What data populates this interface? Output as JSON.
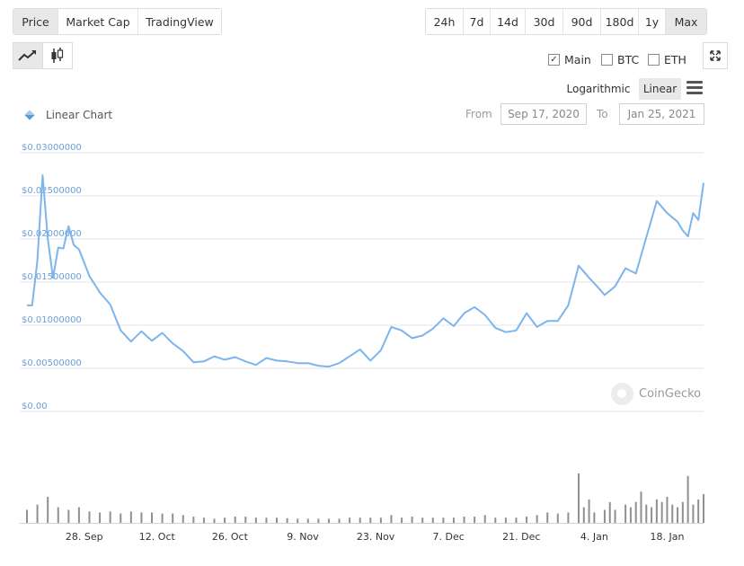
{
  "tabs": [
    {
      "label": "Price",
      "active": true
    },
    {
      "label": "Market Cap",
      "active": false
    },
    {
      "label": "TradingView",
      "active": false
    }
  ],
  "ranges": [
    {
      "label": "24h",
      "active": false
    },
    {
      "label": "7d",
      "active": false
    },
    {
      "label": "14d",
      "active": false
    },
    {
      "label": "30d",
      "active": false
    },
    {
      "label": "90d",
      "active": false
    },
    {
      "label": "180d",
      "active": false
    },
    {
      "label": "1y",
      "active": false
    },
    {
      "label": "Max",
      "active": true
    }
  ],
  "chart_style": {
    "line_icon": "line-chart-icon",
    "candle_icon": "candlestick-icon",
    "selected": "line"
  },
  "expand_icon": "expand-icon",
  "compare": {
    "main": {
      "label": "Main",
      "checked": true
    },
    "btc": {
      "label": "BTC",
      "checked": false
    },
    "eth": {
      "label": "ETH",
      "checked": false
    }
  },
  "scale": {
    "log_label": "Logarithmic",
    "linear_label": "Linear",
    "selected": "linear",
    "menu_icon": "menu-icon"
  },
  "date_range": {
    "from_label": "From",
    "from_value": "Sep 17, 2020",
    "to_label": "To",
    "to_value": "Jan 25, 2021"
  },
  "watermark": "CoinGecko",
  "colors": {
    "line": "#7cb5ec",
    "axis_labels": "#6b9fd4",
    "volume": "#909090",
    "grid": "#e6e6e6"
  },
  "chart_data": {
    "type": "line",
    "series": [
      {
        "name": "Linear Chart",
        "x": [
          "2020-09-17",
          "2020-09-18",
          "2020-09-19",
          "2020-09-20",
          "2020-09-21",
          "2020-09-22",
          "2020-09-23",
          "2020-09-24",
          "2020-09-25",
          "2020-09-26",
          "2020-09-27",
          "2020-09-29",
          "2020-10-01",
          "2020-10-03",
          "2020-10-05",
          "2020-10-07",
          "2020-10-09",
          "2020-10-11",
          "2020-10-13",
          "2020-10-15",
          "2020-10-17",
          "2020-10-19",
          "2020-10-21",
          "2020-10-23",
          "2020-10-25",
          "2020-10-27",
          "2020-10-29",
          "2020-10-31",
          "2020-11-02",
          "2020-11-04",
          "2020-11-06",
          "2020-11-08",
          "2020-11-10",
          "2020-11-12",
          "2020-11-14",
          "2020-11-16",
          "2020-11-18",
          "2020-11-20",
          "2020-11-22",
          "2020-11-24",
          "2020-11-26",
          "2020-11-28",
          "2020-11-30",
          "2020-12-02",
          "2020-12-04",
          "2020-12-06",
          "2020-12-08",
          "2020-12-10",
          "2020-12-12",
          "2020-12-14",
          "2020-12-16",
          "2020-12-18",
          "2020-12-20",
          "2020-12-22",
          "2020-12-24",
          "2020-12-26",
          "2020-12-28",
          "2020-12-30",
          "2021-01-01",
          "2021-01-03",
          "2021-01-05",
          "2021-01-06",
          "2021-01-08",
          "2021-01-10",
          "2021-01-12",
          "2021-01-14",
          "2021-01-16",
          "2021-01-18",
          "2021-01-20",
          "2021-01-21",
          "2021-01-22",
          "2021-01-23",
          "2021-01-24",
          "2021-01-25"
        ],
        "values": [
          0.0123,
          0.0123,
          0.0175,
          0.0274,
          0.02,
          0.0155,
          0.019,
          0.0189,
          0.0215,
          0.0193,
          0.0188,
          0.0157,
          0.0138,
          0.0124,
          0.0094,
          0.0081,
          0.0093,
          0.0082,
          0.0091,
          0.0079,
          0.007,
          0.0057,
          0.0058,
          0.0064,
          0.006,
          0.0063,
          0.0058,
          0.0054,
          0.0062,
          0.0059,
          0.0058,
          0.0056,
          0.0056,
          0.0053,
          0.0052,
          0.0056,
          0.0064,
          0.0072,
          0.0059,
          0.0071,
          0.0098,
          0.0094,
          0.0085,
          0.0088,
          0.0096,
          0.0108,
          0.0099,
          0.0114,
          0.0121,
          0.0112,
          0.0097,
          0.0092,
          0.0094,
          0.0114,
          0.0098,
          0.0105,
          0.0105,
          0.0123,
          0.0169,
          0.0155,
          0.0142,
          0.0135,
          0.0145,
          0.0166,
          0.016,
          0.0202,
          0.0244,
          0.023,
          0.022,
          0.021,
          0.0203,
          0.023,
          0.0222,
          0.0265
        ]
      }
    ],
    "volume": {
      "x": [
        "2020-09-17",
        "2020-09-19",
        "2020-09-21",
        "2020-09-23",
        "2020-09-25",
        "2020-09-27",
        "2020-09-29",
        "2020-10-01",
        "2020-10-03",
        "2020-10-05",
        "2020-10-07",
        "2020-10-09",
        "2020-10-11",
        "2020-10-13",
        "2020-10-15",
        "2020-10-17",
        "2020-10-19",
        "2020-10-21",
        "2020-10-23",
        "2020-10-25",
        "2020-10-27",
        "2020-10-29",
        "2020-10-31",
        "2020-11-02",
        "2020-11-04",
        "2020-11-06",
        "2020-11-08",
        "2020-11-10",
        "2020-11-12",
        "2020-11-14",
        "2020-11-16",
        "2020-11-18",
        "2020-11-20",
        "2020-11-22",
        "2020-11-24",
        "2020-11-26",
        "2020-11-28",
        "2020-11-30",
        "2020-12-02",
        "2020-12-04",
        "2020-12-06",
        "2020-12-08",
        "2020-12-10",
        "2020-12-12",
        "2020-12-14",
        "2020-12-16",
        "2020-12-18",
        "2020-12-20",
        "2020-12-22",
        "2020-12-24",
        "2020-12-26",
        "2020-12-28",
        "2020-12-30",
        "2021-01-01",
        "2021-01-02",
        "2021-01-03",
        "2021-01-04",
        "2021-01-06",
        "2021-01-07",
        "2021-01-08",
        "2021-01-10",
        "2021-01-11",
        "2021-01-12",
        "2021-01-13",
        "2021-01-14",
        "2021-01-15",
        "2021-01-16",
        "2021-01-17",
        "2021-01-18",
        "2021-01-19",
        "2021-01-20",
        "2021-01-21",
        "2021-01-22",
        "2021-01-23",
        "2021-01-24",
        "2021-01-25"
      ],
      "values": [
        0.25,
        0.35,
        0.5,
        0.3,
        0.25,
        0.3,
        0.22,
        0.2,
        0.22,
        0.18,
        0.22,
        0.2,
        0.2,
        0.18,
        0.18,
        0.15,
        0.12,
        0.1,
        0.08,
        0.1,
        0.12,
        0.12,
        0.1,
        0.1,
        0.1,
        0.09,
        0.08,
        0.08,
        0.08,
        0.08,
        0.08,
        0.1,
        0.1,
        0.1,
        0.1,
        0.15,
        0.1,
        0.12,
        0.1,
        0.1,
        0.1,
        0.1,
        0.12,
        0.12,
        0.15,
        0.1,
        0.1,
        0.1,
        0.12,
        0.15,
        0.2,
        0.18,
        0.2,
        0.95,
        0.3,
        0.45,
        0.2,
        0.25,
        0.4,
        0.25,
        0.35,
        0.3,
        0.4,
        0.6,
        0.35,
        0.3,
        0.45,
        0.4,
        0.5,
        0.35,
        0.3,
        0.4,
        0.9,
        0.35,
        0.45,
        0.55
      ]
    },
    "yticks": [
      "$0.00",
      "$0.00500000",
      "$0.01000000",
      "$0.01500000",
      "$0.02000000",
      "$0.02500000",
      "$0.03000000"
    ],
    "ylim": [
      0,
      0.03
    ],
    "xticks": [
      {
        "label": "28. Sep",
        "date": "2020-09-28"
      },
      {
        "label": "12. Oct",
        "date": "2020-10-12"
      },
      {
        "label": "26. Oct",
        "date": "2020-10-26"
      },
      {
        "label": "9. Nov",
        "date": "2020-11-09"
      },
      {
        "label": "23. Nov",
        "date": "2020-11-23"
      },
      {
        "label": "7. Dec",
        "date": "2020-12-07"
      },
      {
        "label": "21. Dec",
        "date": "2020-12-21"
      },
      {
        "label": "4. Jan",
        "date": "2021-01-04"
      },
      {
        "label": "18. Jan",
        "date": "2021-01-18"
      }
    ],
    "xlim": [
      "2020-09-17",
      "2021-01-25"
    ],
    "grid": true,
    "legend": "top-left"
  }
}
